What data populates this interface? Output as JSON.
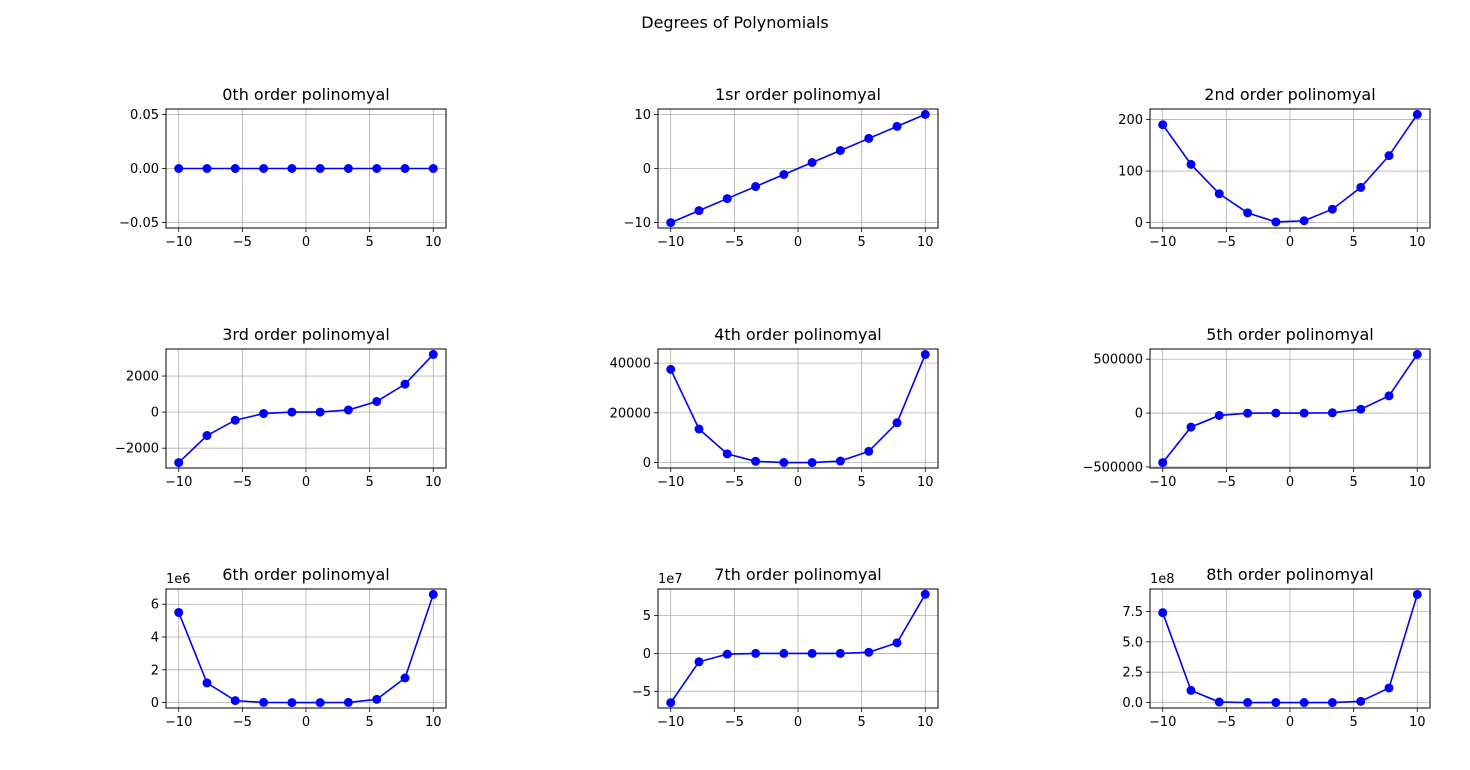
{
  "figure": {
    "title": "Degrees of Polynomials",
    "series_color": "#0000ff",
    "grid_color": "#b0b0b0"
  },
  "chart_data": [
    {
      "type": "line",
      "title": "0th order polinomyal",
      "x": [
        -10,
        -7.78,
        -5.56,
        -3.33,
        -1.11,
        1.11,
        3.33,
        5.56,
        7.78,
        10
      ],
      "y": [
        0,
        0,
        0,
        0,
        0,
        0,
        0,
        0,
        0,
        0
      ],
      "xlim": [
        -11,
        11
      ],
      "ylim": [
        -0.055,
        0.055
      ],
      "xticks": [
        -10,
        -5,
        0,
        5,
        10
      ],
      "xtick_labels": [
        "−10",
        "−5",
        "0",
        "5",
        "10"
      ],
      "yticks": [
        -0.05,
        0,
        0.05
      ],
      "ytick_labels": [
        "−0.05",
        "0.00",
        "0.05"
      ],
      "offset": "",
      "grid": true,
      "marker": "circle"
    },
    {
      "type": "line",
      "title": "1sr order polinomyal",
      "x": [
        -10,
        -7.78,
        -5.56,
        -3.33,
        -1.11,
        1.11,
        3.33,
        5.56,
        7.78,
        10
      ],
      "y": [
        -10,
        -7.78,
        -5.56,
        -3.33,
        -1.11,
        1.11,
        3.33,
        5.56,
        7.78,
        10
      ],
      "xlim": [
        -11,
        11
      ],
      "ylim": [
        -11,
        11
      ],
      "xticks": [
        -10,
        -5,
        0,
        5,
        10
      ],
      "xtick_labels": [
        "−10",
        "−5",
        "0",
        "5",
        "10"
      ],
      "yticks": [
        -10,
        0,
        10
      ],
      "ytick_labels": [
        "−10",
        "0",
        "10"
      ],
      "offset": "",
      "grid": true,
      "marker": "circle"
    },
    {
      "type": "line",
      "title": "2nd order polinomyal",
      "x": [
        -10,
        -7.78,
        -5.56,
        -3.33,
        -1.11,
        1.11,
        3.33,
        5.56,
        7.78,
        10
      ],
      "y": [
        190,
        113,
        56,
        18.9,
        1.2,
        3.6,
        26,
        68.3,
        130,
        210
      ],
      "xlim": [
        -11,
        11
      ],
      "ylim": [
        -10.5,
        220.5
      ],
      "xticks": [
        -10,
        -5,
        0,
        5,
        10
      ],
      "xtick_labels": [
        "−10",
        "−5",
        "0",
        "5",
        "10"
      ],
      "yticks": [
        0,
        100,
        200
      ],
      "ytick_labels": [
        "0",
        "100",
        "200"
      ],
      "offset": "",
      "grid": true,
      "marker": "circle"
    },
    {
      "type": "line",
      "title": "3rd order polinomyal",
      "x": [
        -10,
        -7.78,
        -5.56,
        -3.33,
        -1.11,
        1.11,
        3.33,
        5.56,
        7.78,
        10
      ],
      "y": [
        -2800,
        -1300,
        -450,
        -80,
        0,
        0,
        120,
        590,
        1550,
        3200
      ],
      "xlim": [
        -11,
        11
      ],
      "ylim": [
        -3100,
        3500
      ],
      "xticks": [
        -10,
        -5,
        0,
        5,
        10
      ],
      "xtick_labels": [
        "−10",
        "−5",
        "0",
        "5",
        "10"
      ],
      "yticks": [
        -2000,
        0,
        2000
      ],
      "ytick_labels": [
        "−2000",
        "0",
        "2000"
      ],
      "offset": "",
      "grid": true,
      "marker": "circle"
    },
    {
      "type": "line",
      "title": "4th order polinomyal",
      "x": [
        -10,
        -7.78,
        -5.56,
        -3.33,
        -1.11,
        1.11,
        3.33,
        5.56,
        7.78,
        10
      ],
      "y": [
        37500,
        13500,
        3500,
        500,
        0,
        0,
        600,
        4500,
        16000,
        43500
      ],
      "xlim": [
        -11,
        11
      ],
      "ylim": [
        -2200,
        45700
      ],
      "xticks": [
        -10,
        -5,
        0,
        5,
        10
      ],
      "xtick_labels": [
        "−10",
        "−5",
        "0",
        "5",
        "10"
      ],
      "yticks": [
        0,
        20000,
        40000
      ],
      "ytick_labels": [
        "0",
        "20000",
        "40000"
      ],
      "offset": "",
      "grid": true,
      "marker": "circle"
    },
    {
      "type": "line",
      "title": "5th order polinomyal",
      "x": [
        -10,
        -7.78,
        -5.56,
        -3.33,
        -1.11,
        1.11,
        3.33,
        5.56,
        7.78,
        10
      ],
      "y": [
        -460000,
        -130000,
        -22000,
        -1300,
        0,
        0,
        2500,
        36000,
        160000,
        545000
      ],
      "xlim": [
        -11,
        11
      ],
      "ylim": [
        -510000,
        595000
      ],
      "xticks": [
        -10,
        -5,
        0,
        5,
        10
      ],
      "xtick_labels": [
        "−10",
        "−5",
        "0",
        "5",
        "10"
      ],
      "yticks": [
        -500000,
        0,
        500000
      ],
      "ytick_labels": [
        "−500000",
        "0",
        "500000"
      ],
      "offset": "",
      "grid": true,
      "marker": "circle"
    },
    {
      "type": "line",
      "title": "6th order polinomyal",
      "x": [
        -10,
        -7.78,
        -5.56,
        -3.33,
        -1.11,
        1.11,
        3.33,
        5.56,
        7.78,
        10
      ],
      "y": [
        5.5,
        1.2,
        0.12,
        0.01,
        0,
        0,
        0.01,
        0.2,
        1.5,
        6.6
      ],
      "xlim": [
        -11,
        11
      ],
      "ylim": [
        -0.33,
        6.93
      ],
      "xticks": [
        -10,
        -5,
        0,
        5,
        10
      ],
      "xtick_labels": [
        "−10",
        "−5",
        "0",
        "5",
        "10"
      ],
      "yticks": [
        0,
        2,
        4,
        6
      ],
      "ytick_labels": [
        "0",
        "2",
        "4",
        "6"
      ],
      "offset": "1e6",
      "grid": true,
      "marker": "circle"
    },
    {
      "type": "line",
      "title": "7th order polinomyal",
      "x": [
        -10,
        -7.78,
        -5.56,
        -3.33,
        -1.11,
        1.11,
        3.33,
        5.56,
        7.78,
        10
      ],
      "y": [
        -6.5,
        -1.1,
        -0.1,
        0,
        0,
        0,
        0,
        0.15,
        1.4,
        7.8
      ],
      "xlim": [
        -11,
        11
      ],
      "ylim": [
        -7.2,
        8.5
      ],
      "xticks": [
        -10,
        -5,
        0,
        5,
        10
      ],
      "xtick_labels": [
        "−10",
        "−5",
        "0",
        "5",
        "10"
      ],
      "yticks": [
        -5,
        0,
        5
      ],
      "ytick_labels": [
        "−5",
        "0",
        "5"
      ],
      "offset": "1e7",
      "grid": true,
      "marker": "circle"
    },
    {
      "type": "line",
      "title": "8th order polinomyal",
      "x": [
        -10,
        -7.78,
        -5.56,
        -3.33,
        -1.11,
        1.11,
        3.33,
        5.56,
        7.78,
        10
      ],
      "y": [
        7.4,
        1,
        0.04,
        0,
        0,
        0,
        0,
        0.1,
        1.2,
        8.9
      ],
      "xlim": [
        -11,
        11
      ],
      "ylim": [
        -0.45,
        9.35
      ],
      "xticks": [
        -10,
        -5,
        0,
        5,
        10
      ],
      "xtick_labels": [
        "−10",
        "−5",
        "0",
        "5",
        "10"
      ],
      "yticks": [
        0,
        2.5,
        5,
        7.5
      ],
      "ytick_labels": [
        "0.0",
        "2.5",
        "5.0",
        "7.5"
      ],
      "offset": "1e8",
      "grid": true,
      "marker": "circle"
    }
  ]
}
